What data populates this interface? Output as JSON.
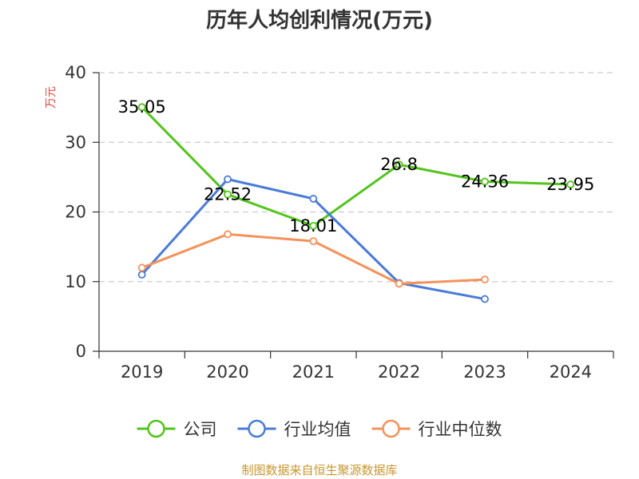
{
  "chart_data": {
    "type": "line",
    "title": "历年人均创利情况(万元)",
    "xlabel": "",
    "ylabel": "万元",
    "categories": [
      "2019",
      "2020",
      "2021",
      "2022",
      "2023",
      "2024"
    ],
    "ylim": [
      0,
      40
    ],
    "yticks": [
      0,
      10,
      20,
      30,
      40
    ],
    "grid": true,
    "legend_position": "bottom",
    "series": [
      {
        "name": "公司",
        "color": "#52c41a",
        "values": [
          35.05,
          22.52,
          18.01,
          26.8,
          24.36,
          23.95
        ],
        "labels": [
          "35.05",
          "22.52",
          "18.01",
          "26.8",
          "24.36",
          "23.95"
        ]
      },
      {
        "name": "行业均值",
        "color": "#4a7bd8",
        "values": [
          11.0,
          24.7,
          21.9,
          9.8,
          7.5,
          null
        ]
      },
      {
        "name": "行业中位数",
        "color": "#f5925a",
        "values": [
          12.0,
          16.8,
          15.8,
          9.7,
          10.3,
          null
        ]
      }
    ]
  },
  "source": "制图数据来自恒生聚源数据库",
  "colors": {
    "title": "#333333",
    "ylabel": "#e8453c",
    "grid": "#cccccc",
    "axis": "#333333",
    "source": "#c8962d"
  }
}
